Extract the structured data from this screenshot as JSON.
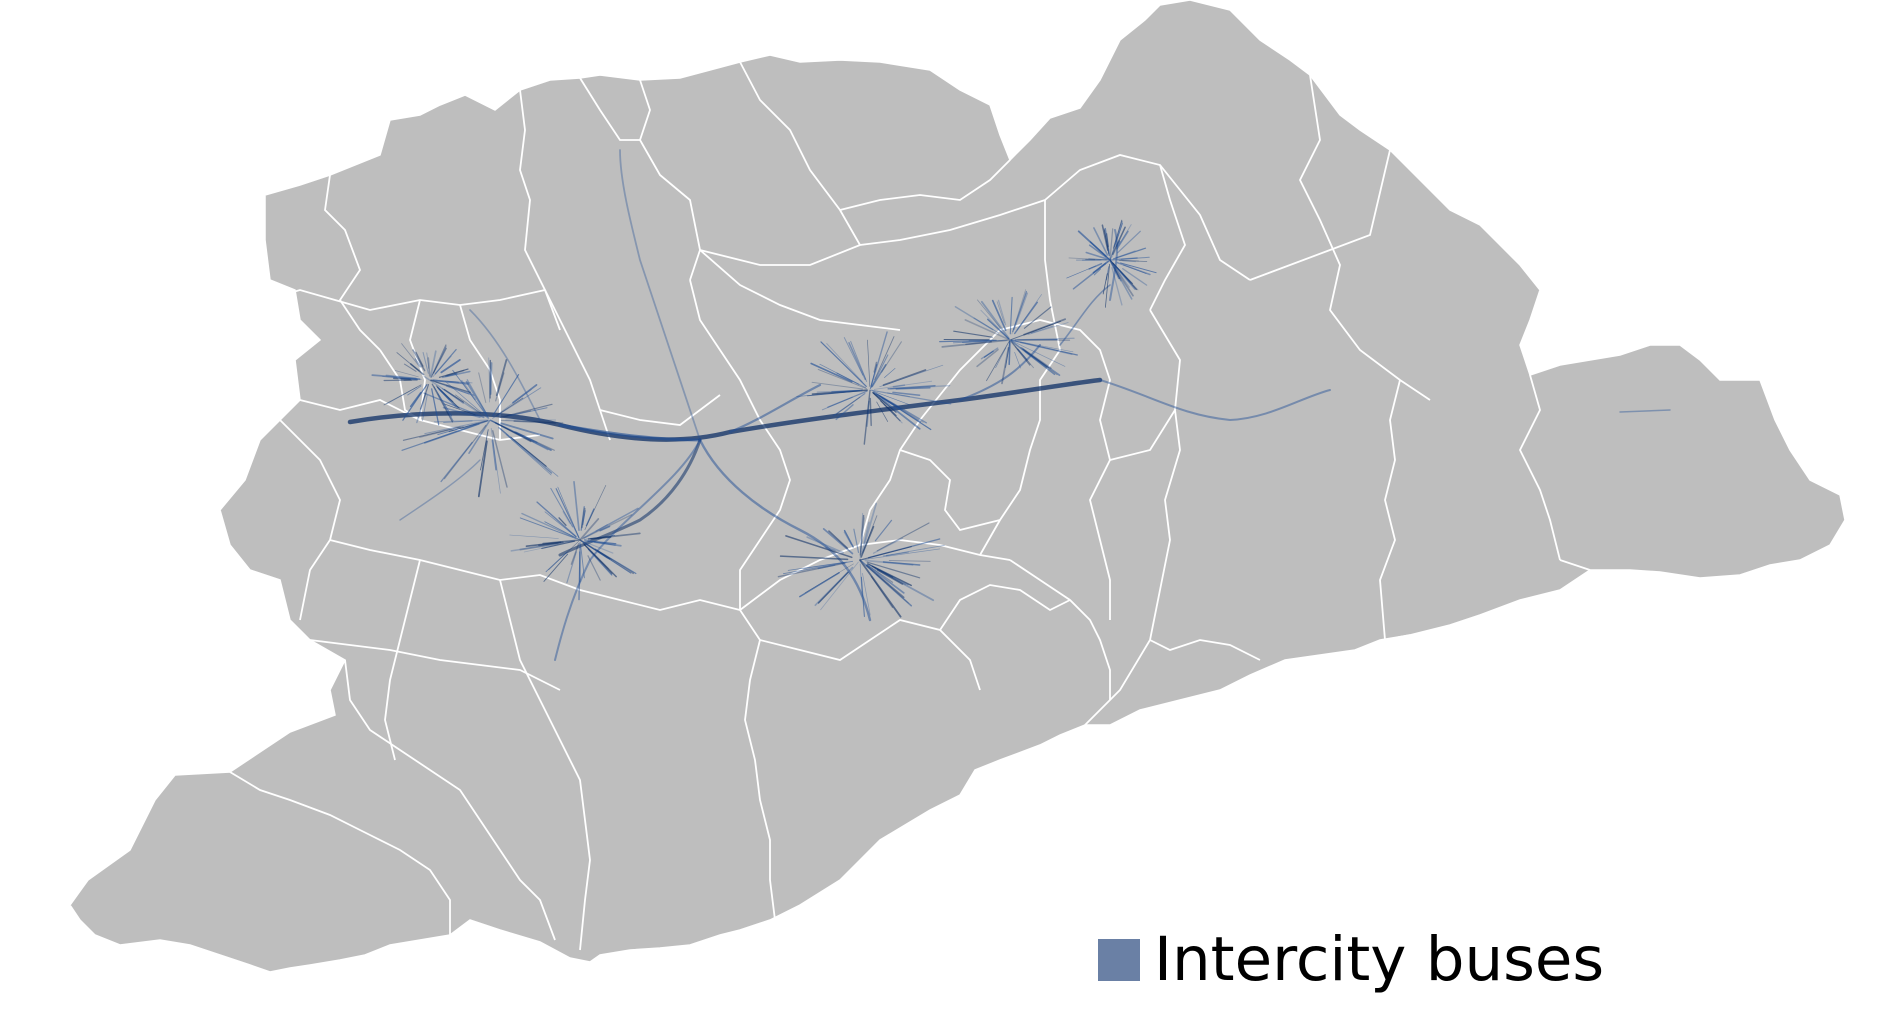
{
  "map": {
    "land_color": "#bebebe",
    "border_color": "#ffffff",
    "flow_color": "#1f4e96",
    "flow_dark_color": "#0d2f66"
  },
  "legend": {
    "items": [
      {
        "label": "Intercity buses",
        "color": "#6a80a5"
      }
    ]
  }
}
